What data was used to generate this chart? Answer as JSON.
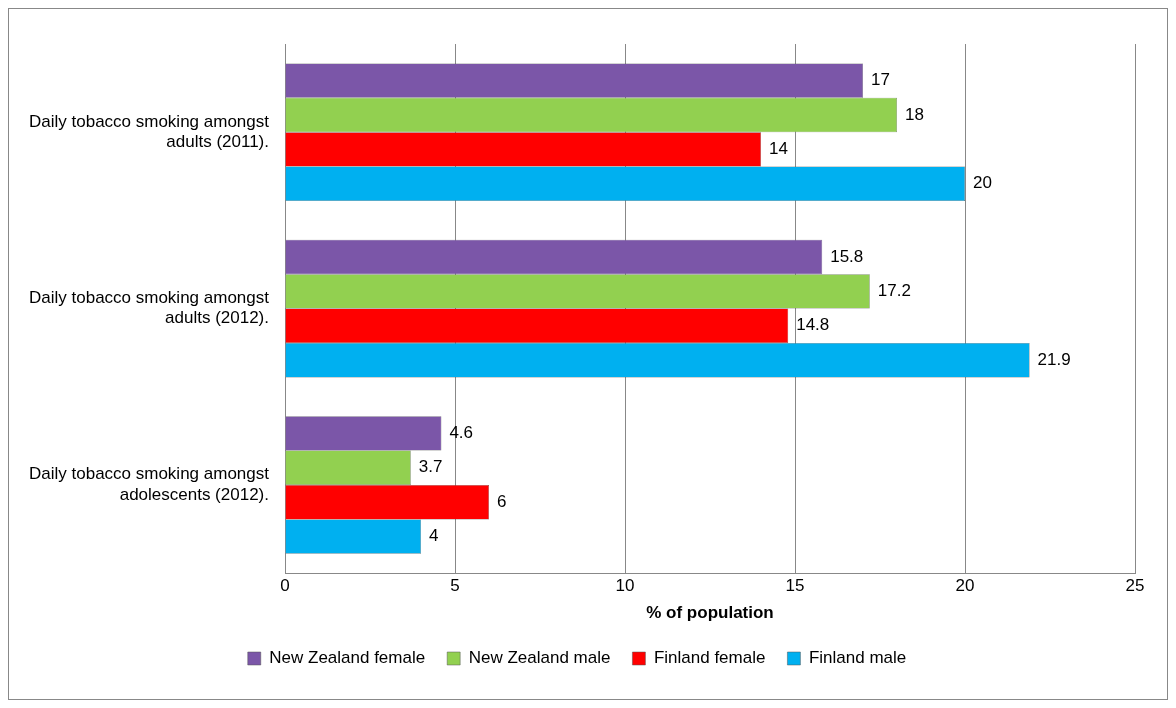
{
  "chart_data": {
    "type": "bar",
    "orientation": "horizontal",
    "xlabel": "% of population",
    "categories": [
      "Daily tobacco smoking amongst adults (2011).",
      "Daily tobacco smoking amongst adults (2012).",
      "Daily tobacco smoking amongst adolescents (2012)."
    ],
    "series": [
      {
        "name": "New Zealand female",
        "color": "#7b56a8",
        "values": [
          17,
          15.8,
          4.6
        ]
      },
      {
        "name": "New Zealand male",
        "color": "#92d050",
        "values": [
          18,
          17.2,
          3.7
        ]
      },
      {
        "name": "Finland female",
        "color": "#ff0000",
        "values": [
          14,
          14.8,
          6
        ]
      },
      {
        "name": "Finland male",
        "color": "#00b0f0",
        "values": [
          20,
          21.9,
          4
        ]
      }
    ],
    "xlim": [
      0,
      25
    ],
    "xticks": [
      0,
      5,
      10,
      15,
      20,
      25
    ],
    "grid": "x",
    "legend": "bottom",
    "data_labels": true
  }
}
